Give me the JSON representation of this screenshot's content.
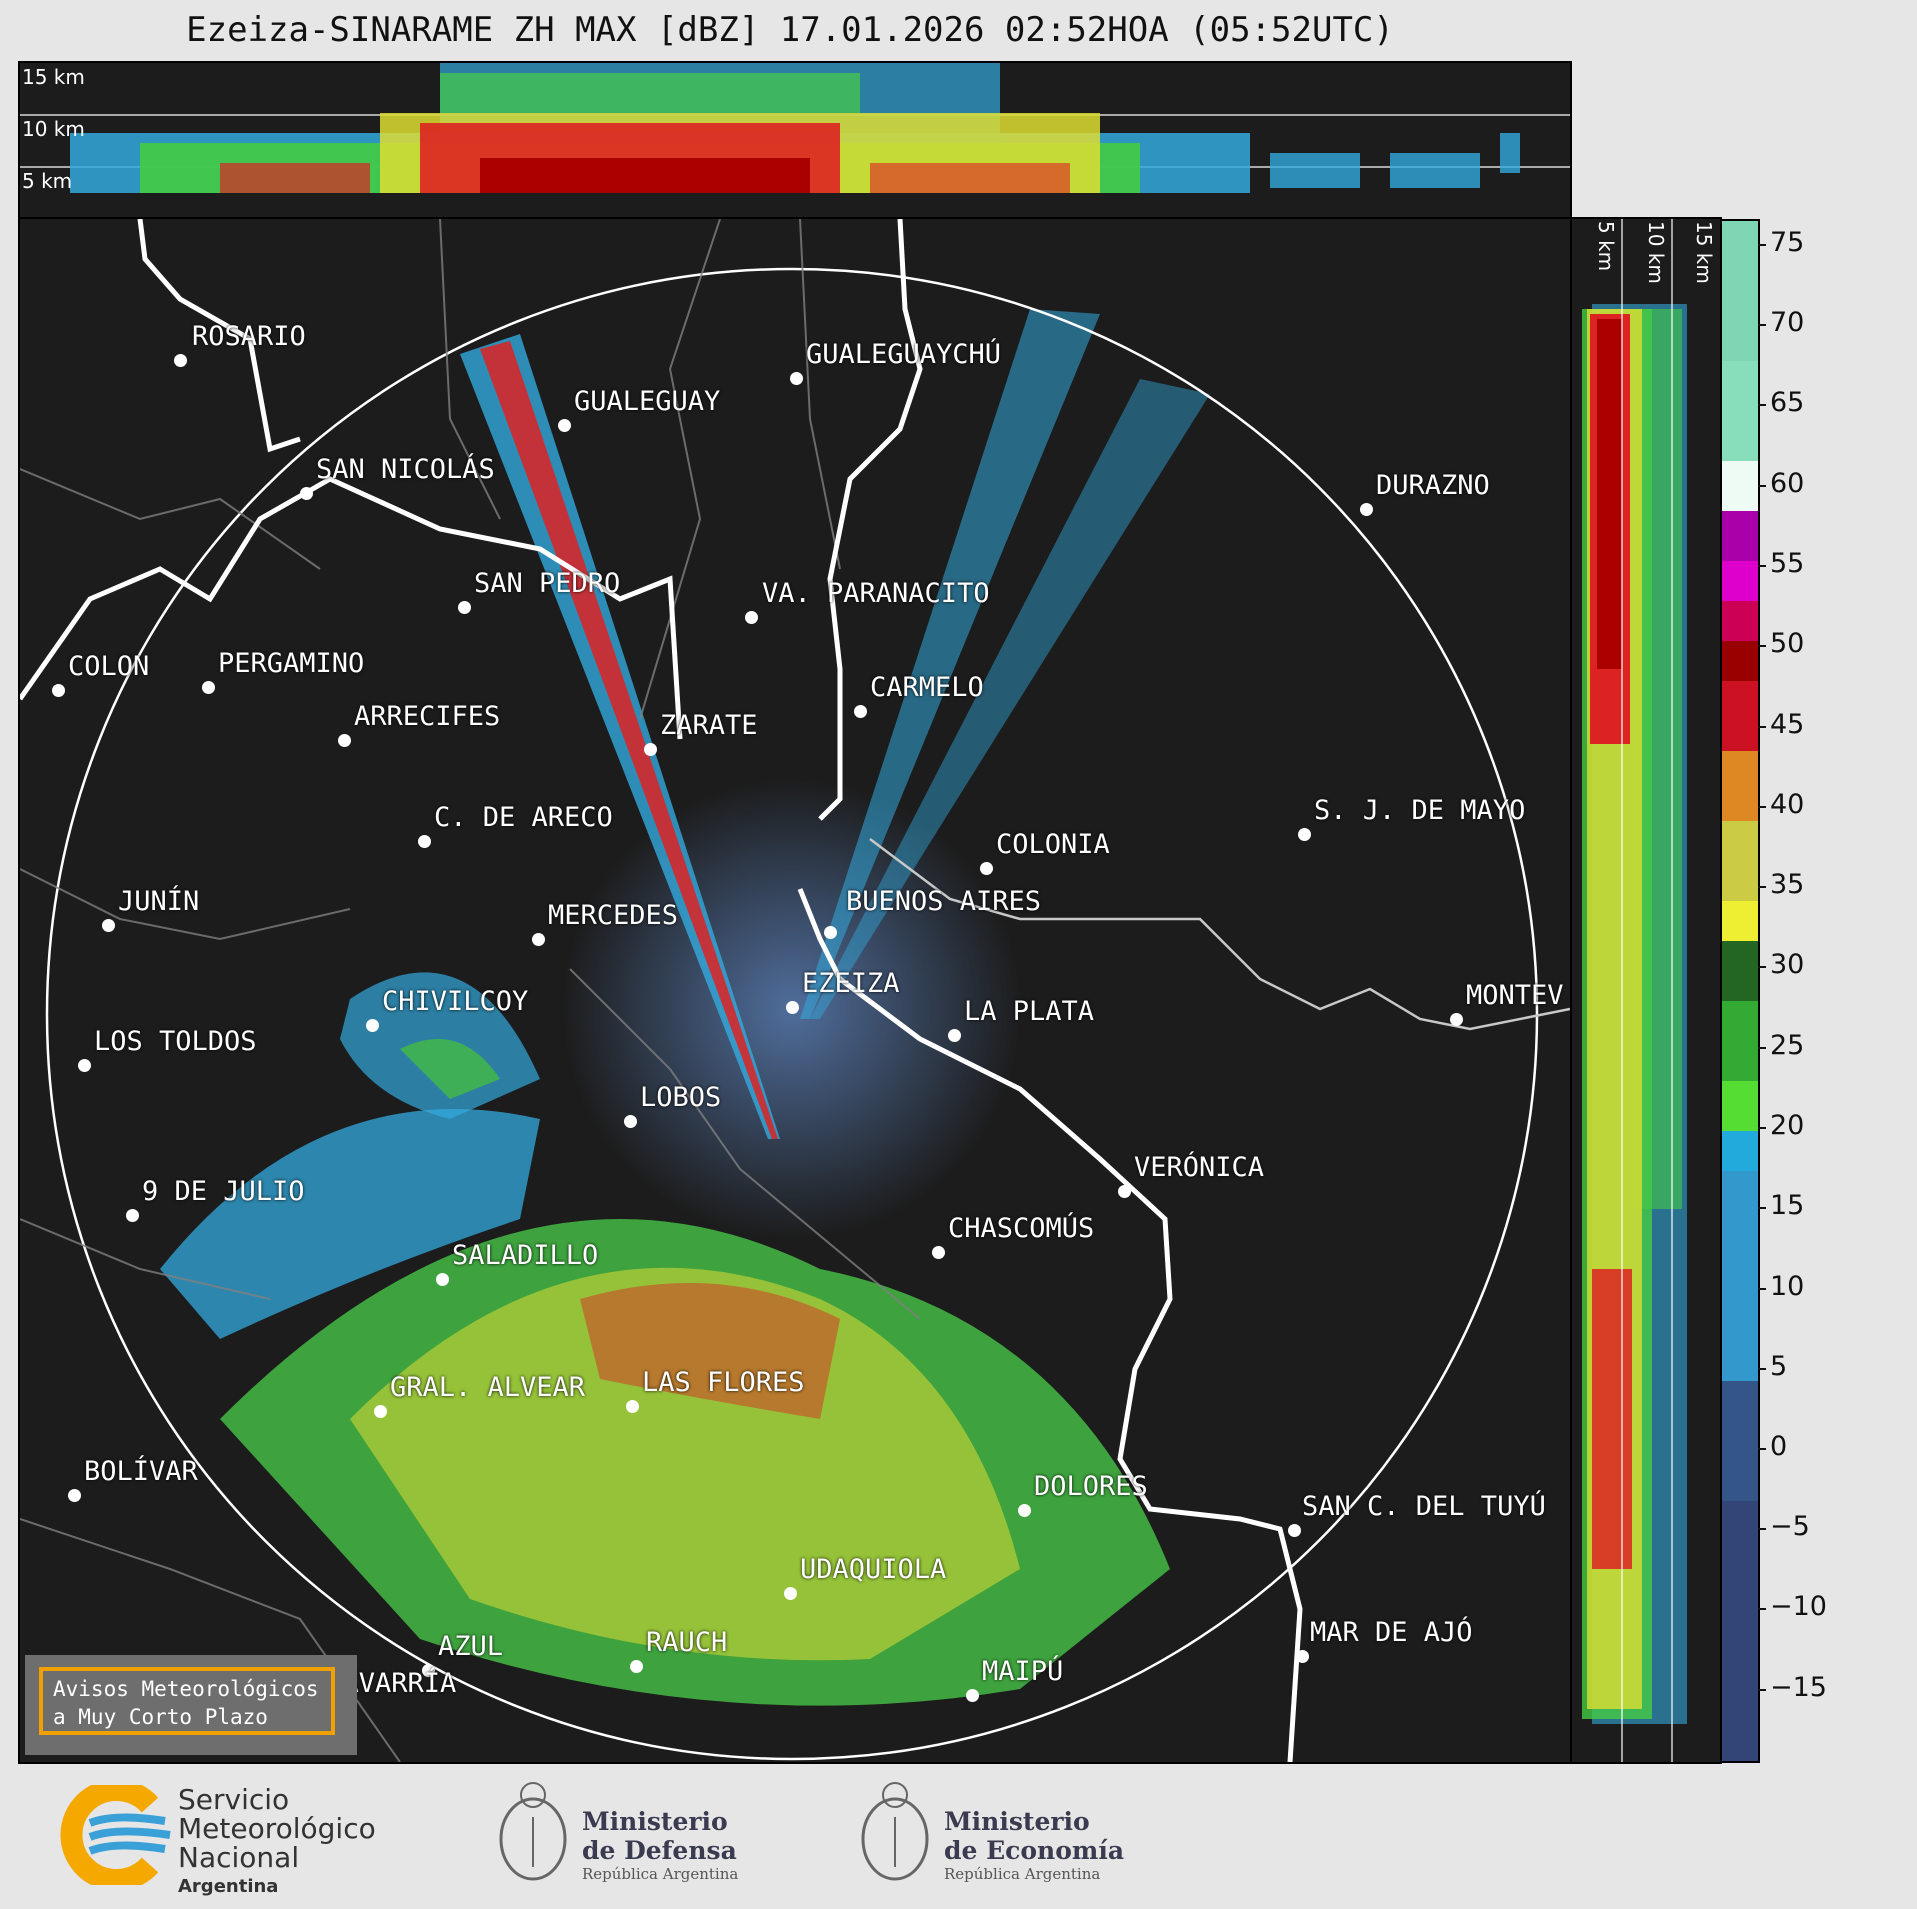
{
  "title": "Ezeiza-SINARAME ZH MAX [dBZ] 17.01.2026 02:52HOA (05:52UTC)",
  "height_labels": [
    "15 km",
    "10 km",
    "5 km"
  ],
  "side_height_labels": [
    "5 km",
    "10 km",
    "15 km"
  ],
  "colorbar": {
    "unit": "dBZ",
    "ticks": [
      "75",
      "70",
      "65",
      "60",
      "55",
      "50",
      "45",
      "40",
      "35",
      "30",
      "25",
      "20",
      "15",
      "10",
      "5",
      "0",
      "−5",
      "−10",
      "−15"
    ]
  },
  "cities": {
    "rosario": "ROSARIO",
    "gualeguaychu": "GUALEGUAYCHÚ",
    "gualeguay": "GUALEGUAY",
    "san_nicolas": "SAN NICOLÁS",
    "durazno": "DURAZNO",
    "san_pedro": "SAN PEDRO",
    "villa_paranacito": "VA. PARANACITO",
    "colon": "COLON",
    "pergamino": "PERGAMINO",
    "carmelo": "CARMELO",
    "arrecifes": "ARRECIFES",
    "zarate": "ZARATE",
    "sj_de_mayo": "S. J. DE MAYO",
    "c_de_areco": "C. DE ARECO",
    "colonia": "COLONIA",
    "junin": "JUNÍN",
    "mercedes": "MERCEDES",
    "buenos_aires": "BUENOS AIRES",
    "montevideo": "MONTEV",
    "ezeiza": "EZEIZA",
    "chivilcoy": "CHIVILCOY",
    "la_plata": "LA PLATA",
    "los_toldos": "LOS TOLDOS",
    "lobos": "LOBOS",
    "veronica": "VERÓNICA",
    "nueve_de_julio": "9 DE JULIO",
    "chascomus": "CHASCOMÚS",
    "saladillo": "SALADILLO",
    "gral_alvear": "GRAL. ALVEAR",
    "las_flores": "LAS FLORES",
    "bolivar": "BOLÍVAR",
    "dolores": "DOLORES",
    "san_c_del_tuyu": "SAN C. DEL TUYÚ",
    "udaquiola": "UDAQUIOLA",
    "mar_de_ajo": "MAR DE AJÓ",
    "azul": "AZUL",
    "rauch": "RAUCH",
    "olavarria": "OLAVARRÍA",
    "maipu": "MAIPÚ"
  },
  "avisos": {
    "line1": "Avisos Meteorológicos",
    "line2": "a Muy Corto Plazo"
  },
  "footer": {
    "smn_line1": "Servicio",
    "smn_line2": "Meteorológico",
    "smn_line3": "Nacional",
    "smn_line4": "Argentina",
    "defensa_line1": "Ministerio",
    "defensa_line2": "de Defensa",
    "defensa_line3": "República Argentina",
    "economia_line1": "Ministerio",
    "economia_line2": "de Economía",
    "economia_line3": "República Argentina"
  },
  "colors": {
    "background": "#1c1c1c",
    "accent": "#f0a000",
    "river": "#ffffff",
    "boundaries": "#808080"
  }
}
